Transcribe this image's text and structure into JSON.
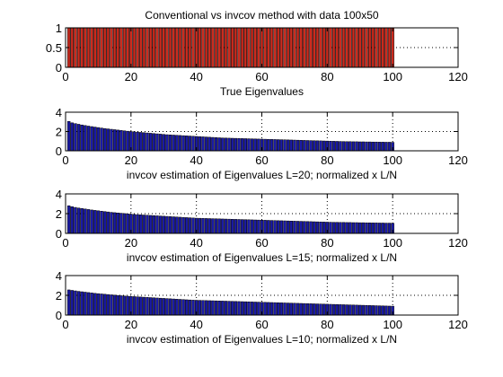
{
  "chart_data": [
    {
      "type": "bar",
      "title": "Conventional vs invcov method with data 100x50",
      "xlabel": "True Eigenvalues",
      "color": "#cc2b1e",
      "xlim": [
        0,
        120
      ],
      "ylim": [
        0,
        1
      ],
      "xticks": [
        "0",
        "20",
        "40",
        "60",
        "80",
        "100",
        "120"
      ],
      "yticks": [
        "0",
        "0.5",
        "1"
      ],
      "grid": true,
      "x_start": 1,
      "values": [
        1,
        1,
        1,
        1,
        1,
        1,
        1,
        1,
        1,
        1,
        1,
        1,
        1,
        1,
        1,
        1,
        1,
        1,
        1,
        1,
        1,
        1,
        1,
        1,
        1,
        1,
        1,
        1,
        1,
        1,
        1,
        1,
        1,
        1,
        1,
        1,
        1,
        1,
        1,
        1,
        1,
        1,
        1,
        1,
        1,
        1,
        1,
        1,
        1,
        1,
        1,
        1,
        1,
        1,
        1,
        1,
        1,
        1,
        1,
        1,
        1,
        1,
        1,
        1,
        1,
        1,
        1,
        1,
        1,
        1,
        1,
        1,
        1,
        1,
        1,
        1,
        1,
        1,
        1,
        1,
        1,
        1,
        1,
        1,
        1,
        1,
        1,
        1,
        1,
        1,
        1,
        1,
        1,
        1,
        1,
        1,
        1,
        1,
        1,
        1
      ]
    },
    {
      "type": "bar",
      "title": "",
      "xlabel": "invcov estimation of Eigenvalues L=20; normalized x L/N",
      "color": "#1a1aa6",
      "xlim": [
        0,
        120
      ],
      "ylim": [
        0,
        4
      ],
      "xticks": [
        "0",
        "20",
        "40",
        "60",
        "80",
        "100",
        "120"
      ],
      "yticks": [
        "0",
        "2",
        "4"
      ],
      "grid": true,
      "x_start": 1,
      "values": [
        3.05,
        2.9,
        2.82,
        2.75,
        2.68,
        2.62,
        2.56,
        2.51,
        2.46,
        2.41,
        2.36,
        2.31,
        2.27,
        2.23,
        2.19,
        2.15,
        2.11,
        2.07,
        2.03,
        2.0,
        1.97,
        1.94,
        1.91,
        1.88,
        1.85,
        1.82,
        1.79,
        1.76,
        1.73,
        1.7,
        1.67,
        1.65,
        1.63,
        1.61,
        1.59,
        1.57,
        1.55,
        1.53,
        1.51,
        1.49,
        1.47,
        1.45,
        1.43,
        1.41,
        1.39,
        1.37,
        1.35,
        1.33,
        1.32,
        1.31,
        1.3,
        1.29,
        1.28,
        1.27,
        1.26,
        1.25,
        1.24,
        1.23,
        1.22,
        1.21,
        1.2,
        1.19,
        1.18,
        1.17,
        1.16,
        1.15,
        1.14,
        1.13,
        1.12,
        1.11,
        1.1,
        1.09,
        1.08,
        1.07,
        1.06,
        1.05,
        1.04,
        1.03,
        1.02,
        1.01,
        1.0,
        0.99,
        0.98,
        0.97,
        0.96,
        0.95,
        0.95,
        0.94,
        0.94,
        0.93,
        0.93,
        0.92,
        0.92,
        0.91,
        0.91,
        0.9,
        0.9,
        0.89,
        0.89,
        0.88
      ]
    },
    {
      "type": "bar",
      "title": "",
      "xlabel": "invcov estimation of Eigenvalues L=15; normalized x L/N",
      "color": "#1a1aa6",
      "xlim": [
        0,
        120
      ],
      "ylim": [
        0,
        4
      ],
      "xticks": [
        "0",
        "20",
        "40",
        "60",
        "80",
        "100",
        "120"
      ],
      "yticks": [
        "0",
        "2",
        "4"
      ],
      "grid": true,
      "x_start": 1,
      "values": [
        2.8,
        2.7,
        2.63,
        2.57,
        2.52,
        2.47,
        2.42,
        2.37,
        2.33,
        2.29,
        2.25,
        2.21,
        2.17,
        2.13,
        2.1,
        2.07,
        2.04,
        2.01,
        1.98,
        1.95,
        1.92,
        1.9,
        1.88,
        1.86,
        1.84,
        1.82,
        1.8,
        1.78,
        1.76,
        1.74,
        1.72,
        1.7,
        1.68,
        1.66,
        1.64,
        1.62,
        1.6,
        1.58,
        1.56,
        1.54,
        1.53,
        1.52,
        1.51,
        1.5,
        1.49,
        1.48,
        1.47,
        1.46,
        1.45,
        1.44,
        1.43,
        1.42,
        1.41,
        1.4,
        1.39,
        1.38,
        1.37,
        1.36,
        1.35,
        1.34,
        1.33,
        1.32,
        1.31,
        1.3,
        1.29,
        1.28,
        1.27,
        1.26,
        1.25,
        1.24,
        1.23,
        1.22,
        1.21,
        1.2,
        1.19,
        1.18,
        1.17,
        1.16,
        1.15,
        1.14,
        1.13,
        1.12,
        1.12,
        1.11,
        1.11,
        1.1,
        1.1,
        1.09,
        1.09,
        1.08,
        1.08,
        1.07,
        1.07,
        1.06,
        1.06,
        1.05,
        1.05,
        1.04,
        1.04,
        1.03
      ]
    },
    {
      "type": "bar",
      "title": "",
      "xlabel": "invcov estimation of Eigenvalues L=10; normalized x L/N",
      "color": "#1a1aa6",
      "xlim": [
        0,
        120
      ],
      "ylim": [
        0,
        4
      ],
      "xticks": [
        "0",
        "20",
        "40",
        "60",
        "80",
        "100",
        "120"
      ],
      "yticks": [
        "0",
        "2",
        "4"
      ],
      "grid": true,
      "x_start": 1,
      "values": [
        2.55,
        2.5,
        2.45,
        2.4,
        2.36,
        2.32,
        2.28,
        2.24,
        2.2,
        2.17,
        2.14,
        2.11,
        2.08,
        2.05,
        2.02,
        1.99,
        1.96,
        1.93,
        1.91,
        1.89,
        1.87,
        1.85,
        1.83,
        1.81,
        1.79,
        1.77,
        1.75,
        1.73,
        1.71,
        1.69,
        1.67,
        1.65,
        1.63,
        1.61,
        1.59,
        1.57,
        1.55,
        1.53,
        1.51,
        1.5,
        1.49,
        1.48,
        1.47,
        1.46,
        1.45,
        1.44,
        1.43,
        1.42,
        1.41,
        1.4,
        1.39,
        1.38,
        1.37,
        1.36,
        1.35,
        1.34,
        1.33,
        1.32,
        1.31,
        1.3,
        1.29,
        1.28,
        1.27,
        1.26,
        1.25,
        1.24,
        1.23,
        1.22,
        1.21,
        1.2,
        1.19,
        1.18,
        1.17,
        1.16,
        1.15,
        1.14,
        1.13,
        1.12,
        1.11,
        1.1,
        1.09,
        1.08,
        1.07,
        1.06,
        1.05,
        1.04,
        1.03,
        1.02,
        1.01,
        1.0,
        0.99,
        0.98,
        0.97,
        0.96,
        0.95,
        0.94,
        0.93,
        0.92,
        0.91,
        0.9
      ]
    }
  ]
}
